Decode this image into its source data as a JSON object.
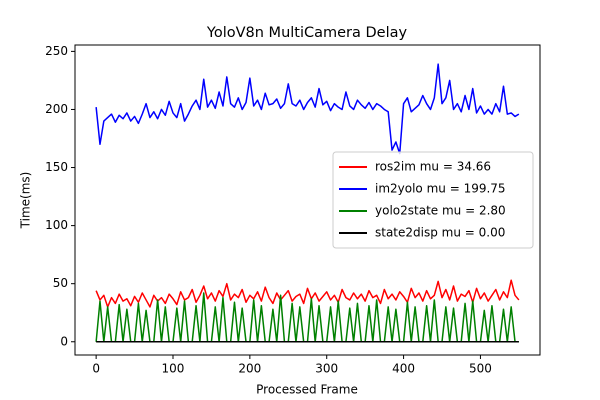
{
  "chart_data": {
    "type": "line",
    "title": "YoloV8n MultiCamera Delay",
    "xlabel": "Processed Frame",
    "ylabel": "Time(ms)",
    "x": [
      0,
      5,
      10,
      15,
      20,
      25,
      30,
      35,
      40,
      45,
      50,
      55,
      60,
      65,
      70,
      75,
      80,
      85,
      90,
      95,
      100,
      105,
      110,
      115,
      120,
      125,
      130,
      135,
      140,
      145,
      150,
      155,
      160,
      165,
      170,
      175,
      180,
      185,
      190,
      195,
      200,
      205,
      210,
      215,
      220,
      225,
      230,
      235,
      240,
      245,
      250,
      255,
      260,
      265,
      270,
      275,
      280,
      285,
      290,
      295,
      300,
      305,
      310,
      315,
      320,
      325,
      330,
      335,
      340,
      345,
      350,
      355,
      360,
      365,
      370,
      375,
      380,
      385,
      390,
      395,
      400,
      405,
      410,
      415,
      420,
      425,
      430,
      435,
      440,
      445,
      450,
      455,
      460,
      465,
      470,
      475,
      480,
      485,
      490,
      495,
      500,
      505,
      510,
      515,
      520,
      525,
      530,
      535,
      540,
      545,
      550
    ],
    "series": [
      {
        "name": "ros2im mu = 34.66",
        "color": "#ff0000",
        "values": [
          44,
          36,
          40,
          30,
          38,
          33,
          41,
          35,
          37,
          31,
          39,
          34,
          42,
          36,
          30,
          40,
          35,
          38,
          33,
          41,
          37,
          32,
          43,
          36,
          38,
          45,
          34,
          40,
          48,
          37,
          42,
          35,
          44,
          39,
          50,
          36,
          41,
          38,
          45,
          34,
          40,
          37,
          43,
          35,
          47,
          38,
          33,
          42,
          36,
          40,
          44,
          35,
          39,
          41,
          33,
          46,
          37,
          42,
          35,
          39,
          43,
          36,
          40,
          34,
          45,
          38,
          36,
          42,
          37,
          41,
          35,
          44,
          38,
          40,
          33,
          45,
          37,
          41,
          36,
          43,
          39,
          34,
          46,
          38,
          42,
          35,
          44,
          37,
          40,
          52,
          38,
          45,
          36,
          48,
          35,
          41,
          39,
          44,
          34,
          46,
          37,
          42,
          35,
          40,
          45,
          36,
          43,
          38,
          53,
          40,
          36
        ]
      },
      {
        "name": "im2yolo mu = 199.75",
        "color": "#0000ff",
        "values": [
          202,
          170,
          190,
          193,
          196,
          189,
          195,
          192,
          197,
          190,
          194,
          188,
          196,
          205,
          193,
          198,
          192,
          200,
          195,
          207,
          197,
          193,
          205,
          190,
          196,
          203,
          208,
          200,
          226,
          202,
          208,
          201,
          215,
          203,
          228,
          205,
          202,
          210,
          200,
          206,
          227,
          203,
          208,
          200,
          214,
          204,
          205,
          209,
          201,
          205,
          222,
          205,
          203,
          208,
          200,
          206,
          210,
          202,
          218,
          204,
          207,
          199,
          205,
          202,
          200,
          215,
          203,
          200,
          208,
          204,
          201,
          206,
          200,
          205,
          203,
          200,
          198,
          165,
          172,
          162,
          205,
          210,
          198,
          201,
          204,
          212,
          205,
          200,
          210,
          239,
          205,
          210,
          225,
          200,
          205,
          198,
          212,
          200,
          218,
          197,
          203,
          196,
          200,
          196,
          205,
          198,
          220,
          196,
          197,
          194,
          196
        ]
      },
      {
        "name": "yolo2state mu = 2.80",
        "color": "#008000",
        "values": [
          0,
          35,
          0,
          30,
          0,
          0,
          32,
          0,
          28,
          0,
          0,
          33,
          0,
          27,
          0,
          0,
          36,
          0,
          30,
          0,
          0,
          29,
          0,
          35,
          0,
          0,
          31,
          0,
          42,
          0,
          0,
          30,
          0,
          38,
          0,
          0,
          34,
          0,
          29,
          0,
          0,
          36,
          0,
          31,
          0,
          0,
          28,
          0,
          40,
          0,
          0,
          33,
          0,
          30,
          0,
          0,
          37,
          0,
          31,
          0,
          0,
          30,
          0,
          35,
          0,
          0,
          29,
          0,
          33,
          0,
          0,
          31,
          0,
          36,
          0,
          0,
          30,
          0,
          28,
          0,
          0,
          34,
          0,
          30,
          0,
          0,
          31,
          0,
          36,
          0,
          0,
          30,
          0,
          29,
          0,
          0,
          33,
          0,
          35,
          0,
          0,
          27,
          0,
          31,
          0,
          0,
          28,
          0,
          30,
          0,
          0
        ]
      },
      {
        "name": "state2disp mu = 0.00",
        "color": "#000000",
        "values": [
          0,
          0,
          0,
          0,
          0,
          0,
          0,
          0,
          0,
          0,
          0,
          0,
          0,
          0,
          0,
          0,
          0,
          0,
          0,
          0,
          0,
          0,
          0,
          0,
          0,
          0,
          0,
          0,
          0,
          0,
          0,
          0,
          0,
          0,
          0,
          0,
          0,
          0,
          0,
          0,
          0,
          0,
          0,
          0,
          0,
          0,
          0,
          0,
          0,
          0,
          0,
          0,
          0,
          0,
          0,
          0,
          0,
          0,
          0,
          0,
          0,
          0,
          0,
          0,
          0,
          0,
          0,
          0,
          0,
          0,
          0,
          0,
          0,
          0,
          0,
          0,
          0,
          0,
          0,
          0,
          0,
          0,
          0,
          0,
          0,
          0,
          0,
          0,
          0,
          0,
          0,
          0,
          0,
          0,
          0,
          0,
          0,
          0,
          0,
          0,
          0,
          0,
          0,
          0,
          0,
          0,
          0,
          0,
          0,
          0,
          0
        ]
      }
    ],
    "xlim": [
      -27.5,
      577.5
    ],
    "ylim": [
      -11.4,
      255.5
    ],
    "xticks": [
      0,
      100,
      200,
      300,
      400,
      500
    ],
    "yticks": [
      0,
      50,
      100,
      150,
      200,
      250
    ],
    "legend_loc": "center right"
  }
}
